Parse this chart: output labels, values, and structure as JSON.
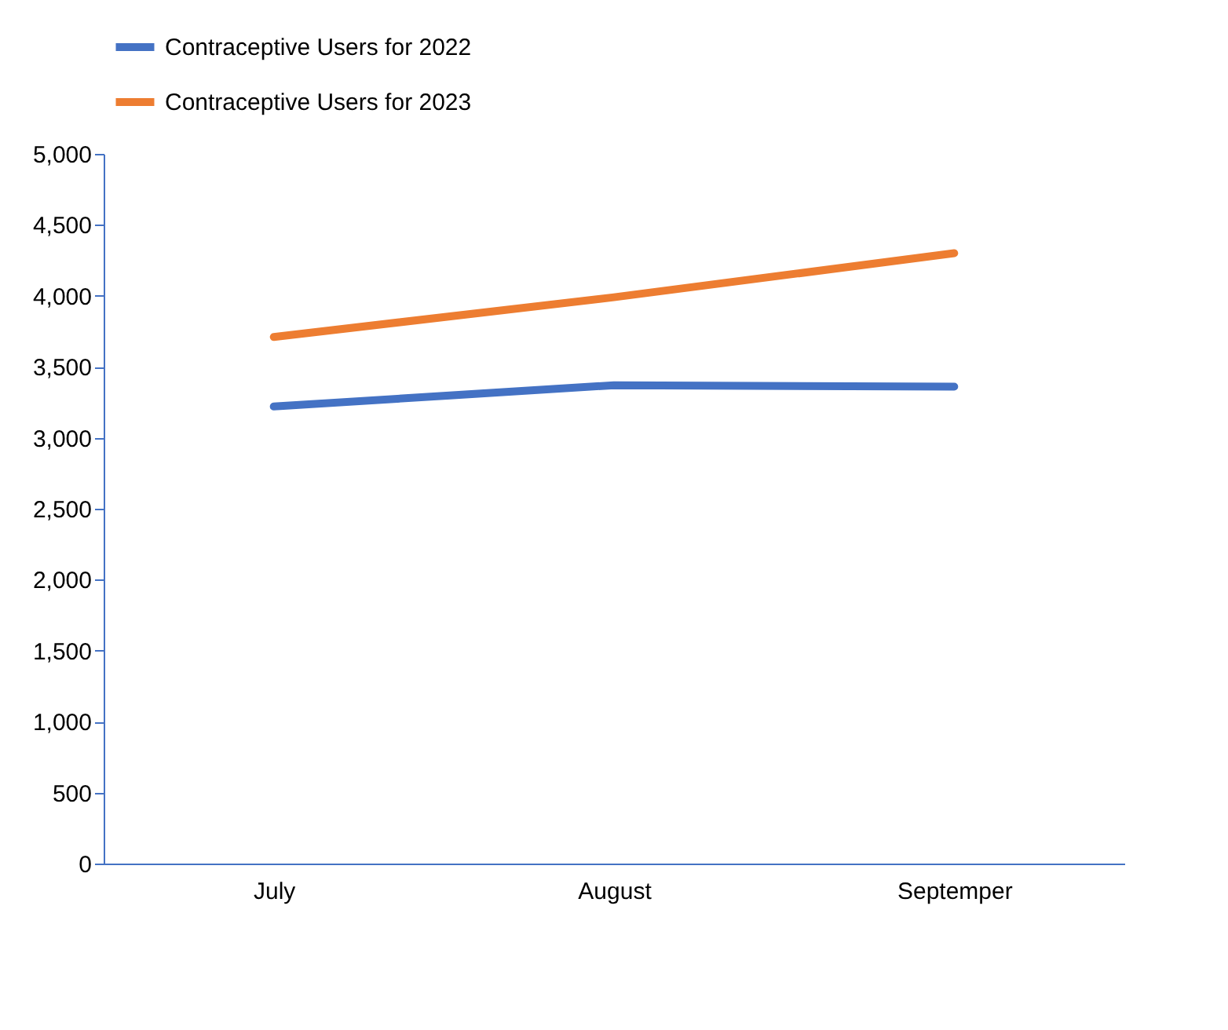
{
  "chart_data": {
    "type": "line",
    "categories": [
      "July",
      "August",
      "Septemper"
    ],
    "series": [
      {
        "name": "Contraceptive Users for 2022",
        "color": "#4472c4",
        "values": [
          3220,
          3370,
          3360
        ]
      },
      {
        "name": "Contraceptive Users for 2023",
        "color": "#ed7d31",
        "values": [
          3710,
          3990,
          4300
        ]
      }
    ],
    "ylim": [
      0,
      5000
    ],
    "yticks": [
      {
        "value": 0,
        "label": "0"
      },
      {
        "value": 500,
        "label": "500"
      },
      {
        "value": 1000,
        "label": "1,000"
      },
      {
        "value": 1500,
        "label": "1,500"
      },
      {
        "value": 2000,
        "label": "2,000"
      },
      {
        "value": 2500,
        "label": "2,500"
      },
      {
        "value": 3000,
        "label": "3,000"
      },
      {
        "value": 3500,
        "label": "3,500"
      },
      {
        "value": 4000,
        "label": "4,000"
      },
      {
        "value": 4500,
        "label": "4,500"
      },
      {
        "value": 5000,
        "label": "5,000"
      }
    ],
    "grid": false,
    "legend": "top",
    "marker": "none",
    "line_style": "solid"
  }
}
